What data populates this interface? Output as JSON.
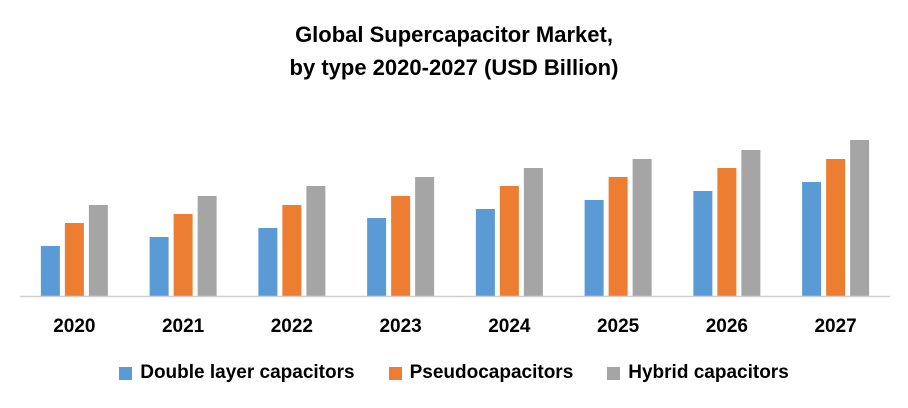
{
  "chart_data": {
    "type": "bar",
    "title_line1": "Global Supercapacitor Market,",
    "title_line2": "by type 2020-2027 (USD Billion)",
    "xlabel": "",
    "ylabel": "",
    "categories": [
      "2020",
      "2021",
      "2022",
      "2023",
      "2024",
      "2025",
      "2026",
      "2027"
    ],
    "series": [
      {
        "name": "Double layer capacitors",
        "color": "#5B9BD5",
        "values": [
          50,
          59,
          68,
          78,
          87,
          96,
          105,
          114
        ]
      },
      {
        "name": "Pseudocapacitors",
        "color": "#ED7D31",
        "values": [
          73,
          82,
          91,
          100,
          110,
          119,
          128,
          137
        ]
      },
      {
        "name": "Hybrid capacitors",
        "color": "#A5A5A5",
        "values": [
          91,
          100,
          110,
          119,
          128,
          137,
          146,
          156
        ]
      }
    ],
    "ylim": [
      0,
      170
    ],
    "y_axis_visible": false,
    "grid": false,
    "legend_position": "bottom",
    "value_note": "relative values estimated from bar heights; no y-axis shown"
  }
}
